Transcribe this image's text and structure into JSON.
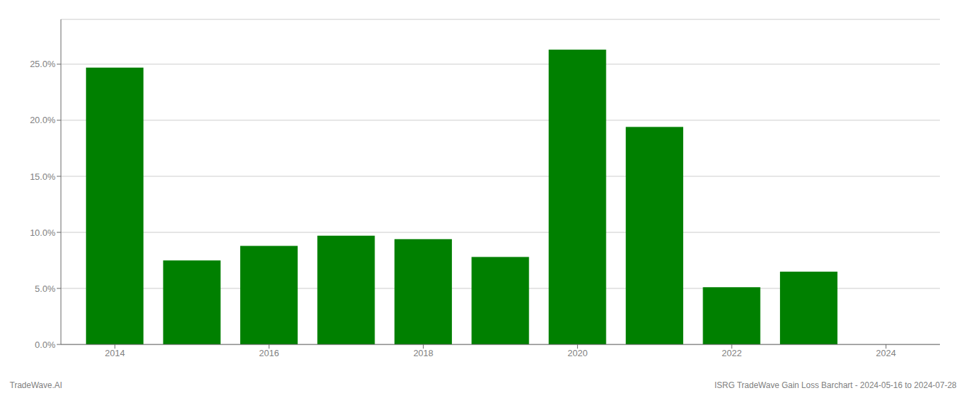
{
  "chart_data": {
    "type": "bar",
    "x": [
      2014,
      2015,
      2016,
      2017,
      2018,
      2019,
      2020,
      2021,
      2022,
      2023
    ],
    "values": [
      0.247,
      0.075,
      0.088,
      0.097,
      0.094,
      0.078,
      0.263,
      0.194,
      0.051,
      0.065
    ],
    "color": "#008000",
    "xlim": [
      2013.3,
      2024.7
    ],
    "xticks": [
      2014,
      2016,
      2018,
      2020,
      2022,
      2024
    ],
    "ylim": [
      0,
      0.29
    ],
    "yticks": [
      {
        "value": 0.0,
        "label": "0.0%"
      },
      {
        "value": 0.05,
        "label": "5.0%"
      },
      {
        "value": 0.1,
        "label": "10.0%"
      },
      {
        "value": 0.15,
        "label": "15.0%"
      },
      {
        "value": 0.2,
        "label": "20.0%"
      },
      {
        "value": 0.25,
        "label": "25.0%"
      }
    ],
    "grid": true,
    "annotations": [
      "TradeWave.AI",
      "ISRG TradeWave Gain Loss Barchart - 2024-05-16 to 2024-07-28"
    ]
  }
}
